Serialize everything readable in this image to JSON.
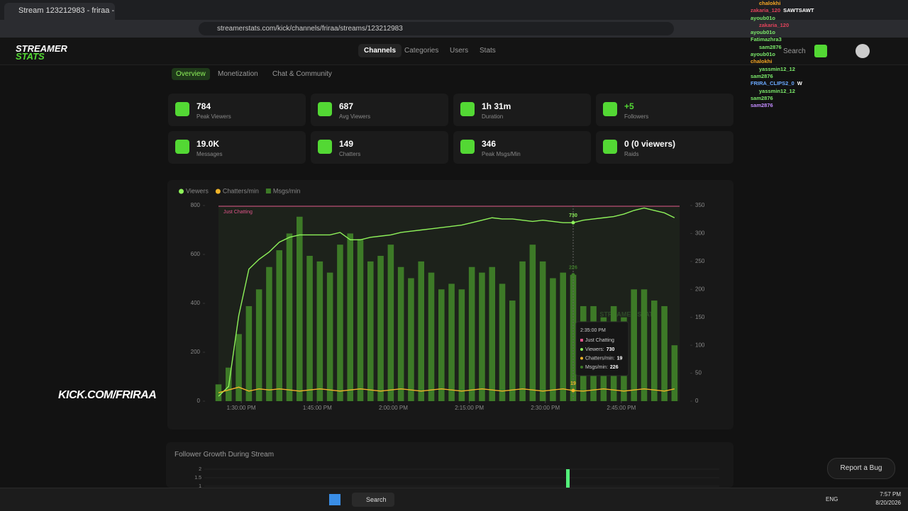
{
  "browser": {
    "tab_title": "Stream 123212983 - friraa - Kick",
    "url": "streamerstats.com/kick/channels/friraa/streams/123212983"
  },
  "site": {
    "logo_line1": "STREAMER",
    "logo_line2": "STATS",
    "nav": [
      "Channels",
      "Categories",
      "Users",
      "Stats"
    ],
    "search": "Search"
  },
  "tabs": [
    "Overview",
    "Monetization",
    "Chat & Community"
  ],
  "stats": [
    {
      "value": "784",
      "label": "Peak Viewers"
    },
    {
      "value": "687",
      "label": "Avg Viewers"
    },
    {
      "value": "1h 31m",
      "label": "Duration"
    },
    {
      "value": "+5",
      "label": "Followers"
    },
    {
      "value": "19.0K",
      "label": "Messages"
    },
    {
      "value": "149",
      "label": "Chatters"
    },
    {
      "value": "346",
      "label": "Peak Msgs/Min"
    },
    {
      "value": "0 (0 viewers)",
      "label": "Raids"
    }
  ],
  "stream_chart": {
    "type": "combo",
    "category_label": "Just Chatting",
    "watermark": "STREAMER STATS",
    "x": [
      0,
      2,
      4,
      6,
      8,
      10,
      12,
      14,
      16,
      18,
      20,
      22,
      24,
      26,
      28,
      30,
      32,
      34,
      36,
      38,
      40,
      42,
      44,
      46,
      48,
      50,
      52,
      54,
      56,
      58,
      60,
      62,
      64,
      66,
      68,
      70,
      72,
      74,
      76,
      78,
      80,
      82,
      84,
      86,
      88,
      90
    ],
    "xlim": [
      0,
      91
    ],
    "xticks": [
      {
        "value": 4.5,
        "label": "1:30:00 PM"
      },
      {
        "value": 19.5,
        "label": "1:45:00 PM"
      },
      {
        "value": 34.5,
        "label": "2:00:00 PM"
      },
      {
        "value": 49.5,
        "label": "2:15:00 PM"
      },
      {
        "value": 64.5,
        "label": "2:30:00 PM"
      },
      {
        "value": 79.5,
        "label": "2:45:00 PM"
      }
    ],
    "ylim": [
      0,
      800
    ],
    "yticks": [
      0,
      200,
      400,
      600,
      800
    ],
    "y2lim": [
      0,
      350
    ],
    "y2ticks": [
      0,
      50,
      100,
      150,
      200,
      250,
      300,
      350
    ],
    "series": [
      {
        "name": "Viewers",
        "color": "#8ef25a",
        "kind": "line",
        "values": [
          20,
          60,
          350,
          540,
          580,
          610,
          650,
          670,
          680,
          680,
          680,
          680,
          690,
          660,
          660,
          670,
          675,
          680,
          690,
          695,
          700,
          705,
          710,
          715,
          720,
          730,
          740,
          750,
          745,
          745,
          740,
          735,
          740,
          735,
          730,
          730,
          740,
          745,
          750,
          755,
          765,
          780,
          790,
          780,
          770,
          750
        ]
      },
      {
        "name": "Chatters/min",
        "color": "#f0b429",
        "kind": "line",
        "axis": "y2",
        "values": [
          15,
          20,
          25,
          18,
          22,
          20,
          22,
          20,
          18,
          20,
          22,
          20,
          18,
          20,
          22,
          20,
          18,
          20,
          22,
          20,
          18,
          20,
          22,
          20,
          18,
          20,
          22,
          20,
          18,
          20,
          22,
          20,
          18,
          20,
          22,
          19,
          18,
          20,
          22,
          20,
          18,
          20,
          22,
          20,
          18,
          22
        ]
      },
      {
        "name": "Msgs/min",
        "color": "#3d7a27",
        "kind": "bar",
        "axis": "y2",
        "values": [
          30,
          60,
          120,
          170,
          200,
          240,
          270,
          300,
          330,
          260,
          250,
          230,
          280,
          300,
          290,
          250,
          260,
          280,
          240,
          220,
          250,
          230,
          200,
          210,
          200,
          240,
          230,
          240,
          210,
          180,
          250,
          280,
          250,
          220,
          230,
          226,
          170,
          170,
          150,
          170,
          150,
          200,
          200,
          180,
          170,
          100
        ]
      }
    ],
    "tooltip": {
      "index": 35,
      "time": "2:35:00 PM",
      "labels": [
        "Viewers:",
        "Chatters/min:",
        "Msgs/min:"
      ]
    }
  },
  "follower_chart": {
    "title": "Follower Growth During Stream",
    "ylim": [
      0,
      2
    ],
    "yticks": [
      2,
      1.5,
      1
    ]
  },
  "chat": [
    {
      "user": "chalokhi"
    },
    {
      "user": "zakaria_120",
      "text": "SAWTSAWT"
    },
    {
      "user": "ayoub01o"
    },
    {
      "user": "zakaria_120"
    },
    {
      "user": "ayoub01o"
    },
    {
      "user": "Fatimazhra3"
    },
    {
      "user": "sam2876"
    },
    {
      "user": "ayoub01o"
    },
    {
      "user": "chalokhi"
    },
    {
      "user": "yassmin12_12"
    },
    {
      "user": "sam2876"
    },
    {
      "user": "FRIRA_CLIPS2_0",
      "text": "W"
    },
    {
      "user": "yassmin12_12"
    },
    {
      "user": "sam2876"
    },
    {
      "user": "sam2876"
    }
  ],
  "overlay": "KICK.COM/FRIRAA",
  "report_bug": "Report a Bug",
  "taskbar": {
    "search": "Search",
    "lang": "ENG",
    "time": "7:57 PM",
    "date": "8/20/2026"
  }
}
